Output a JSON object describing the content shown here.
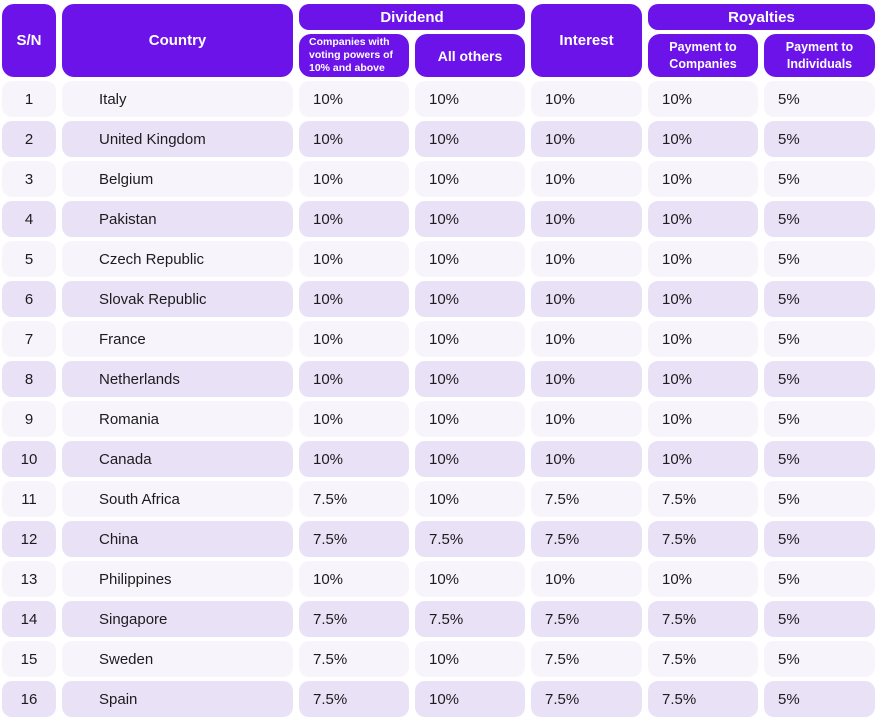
{
  "table": {
    "headers": {
      "sn": "S/N",
      "country": "Country",
      "dividend": "Dividend",
      "dividend_voting": "Companies with voting powers of 10% and above",
      "dividend_others": "All others",
      "interest": "Interest",
      "royalties": "Royalties",
      "royalty_companies": "Payment to Companies",
      "royalty_individuals": "Payment to Individuals"
    },
    "colors": {
      "header_bg": "#6B13E8",
      "header_text": "#FFFFFF",
      "row_odd_bg": "#F8F4FC",
      "row_even_bg": "#E9E1F6",
      "body_text": "#1C1C1E"
    },
    "rows": [
      {
        "sn": "1",
        "country": "Italy",
        "dividend_voting": "10%",
        "dividend_others": "10%",
        "interest": "10%",
        "royalty_companies": "10%",
        "royalty_individuals": "5%"
      },
      {
        "sn": "2",
        "country": "United Kingdom",
        "dividend_voting": "10%",
        "dividend_others": "10%",
        "interest": "10%",
        "royalty_companies": "10%",
        "royalty_individuals": "5%"
      },
      {
        "sn": "3",
        "country": "Belgium",
        "dividend_voting": "10%",
        "dividend_others": "10%",
        "interest": "10%",
        "royalty_companies": "10%",
        "royalty_individuals": "5%"
      },
      {
        "sn": "4",
        "country": "Pakistan",
        "dividend_voting": "10%",
        "dividend_others": "10%",
        "interest": "10%",
        "royalty_companies": "10%",
        "royalty_individuals": "5%"
      },
      {
        "sn": "5",
        "country": "Czech Republic",
        "dividend_voting": "10%",
        "dividend_others": "10%",
        "interest": "10%",
        "royalty_companies": "10%",
        "royalty_individuals": "5%"
      },
      {
        "sn": "6",
        "country": "Slovak Republic",
        "dividend_voting": "10%",
        "dividend_others": "10%",
        "interest": "10%",
        "royalty_companies": "10%",
        "royalty_individuals": "5%"
      },
      {
        "sn": "7",
        "country": "France",
        "dividend_voting": "10%",
        "dividend_others": "10%",
        "interest": "10%",
        "royalty_companies": "10%",
        "royalty_individuals": "5%"
      },
      {
        "sn": "8",
        "country": "Netherlands",
        "dividend_voting": "10%",
        "dividend_others": "10%",
        "interest": "10%",
        "royalty_companies": "10%",
        "royalty_individuals": "5%"
      },
      {
        "sn": "9",
        "country": "Romania",
        "dividend_voting": "10%",
        "dividend_others": "10%",
        "interest": "10%",
        "royalty_companies": "10%",
        "royalty_individuals": "5%"
      },
      {
        "sn": "10",
        "country": "Canada",
        "dividend_voting": "10%",
        "dividend_others": "10%",
        "interest": "10%",
        "royalty_companies": "10%",
        "royalty_individuals": "5%"
      },
      {
        "sn": "11",
        "country": "South Africa",
        "dividend_voting": "7.5%",
        "dividend_others": "10%",
        "interest": "7.5%",
        "royalty_companies": "7.5%",
        "royalty_individuals": "5%"
      },
      {
        "sn": "12",
        "country": "China",
        "dividend_voting": "7.5%",
        "dividend_others": "7.5%",
        "interest": "7.5%",
        "royalty_companies": "7.5%",
        "royalty_individuals": "5%"
      },
      {
        "sn": "13",
        "country": "Philippines",
        "dividend_voting": "10%",
        "dividend_others": "10%",
        "interest": "10%",
        "royalty_companies": "10%",
        "royalty_individuals": "5%"
      },
      {
        "sn": "14",
        "country": "Singapore",
        "dividend_voting": "7.5%",
        "dividend_others": "7.5%",
        "interest": "7.5%",
        "royalty_companies": "7.5%",
        "royalty_individuals": "5%"
      },
      {
        "sn": "15",
        "country": "Sweden",
        "dividend_voting": "7.5%",
        "dividend_others": "10%",
        "interest": "7.5%",
        "royalty_companies": "7.5%",
        "royalty_individuals": "5%"
      },
      {
        "sn": "16",
        "country": "Spain",
        "dividend_voting": "7.5%",
        "dividend_others": "10%",
        "interest": "7.5%",
        "royalty_companies": "7.5%",
        "royalty_individuals": "5%"
      }
    ]
  }
}
